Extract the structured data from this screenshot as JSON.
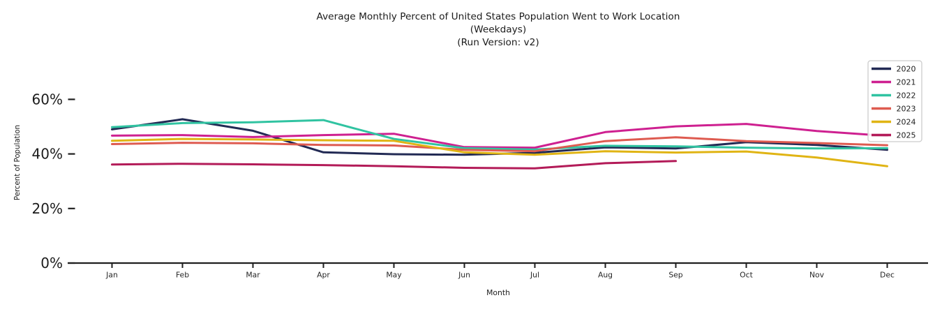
{
  "figure": {
    "background": "#ffffff",
    "axis_color": "#1f1f1f"
  },
  "chart_data": {
    "type": "line",
    "title": "Average Monthly Percent of United States Population Went to Work Location\n(Weekdays)\n(Run Version: v2)",
    "title_lines": [
      "Average Monthly Percent of United States Population Went to Work Location",
      "(Weekdays)",
      "(Run Version: v2)"
    ],
    "xlabel": "Month",
    "ylabel": "Percent of Population",
    "categories": [
      "Jan",
      "Feb",
      "Mar",
      "Apr",
      "May",
      "Jun",
      "Jul",
      "Aug",
      "Sep",
      "Oct",
      "Nov",
      "Dec"
    ],
    "yticks": [
      0,
      20,
      40,
      60
    ],
    "ytick_labels": [
      "0%",
      "20%",
      "40%",
      "60%"
    ],
    "ylim": [
      0,
      74
    ],
    "grid": false,
    "legend_position": "upper right",
    "series": [
      {
        "name": "2020",
        "color": "#222a54",
        "values": [
          49.0,
          52.7,
          48.5,
          40.6,
          39.9,
          39.7,
          40.4,
          42.4,
          42.0,
          44.3,
          43.3,
          41.5
        ]
      },
      {
        "name": "2021",
        "color": "#ce2090",
        "values": [
          46.7,
          46.9,
          46.2,
          46.9,
          47.4,
          42.5,
          42.3,
          48.0,
          50.1,
          51.0,
          48.4,
          46.6
        ]
      },
      {
        "name": "2022",
        "color": "#30c3a1",
        "values": [
          49.8,
          51.3,
          51.6,
          52.4,
          45.5,
          42.1,
          41.6,
          43.0,
          42.8,
          42.3,
          42.0,
          42.1
        ]
      },
      {
        "name": "2023",
        "color": "#de5b50",
        "values": [
          43.6,
          44.1,
          43.9,
          43.3,
          43.1,
          41.5,
          41.0,
          44.7,
          46.1,
          44.7,
          44.0,
          43.2
        ]
      },
      {
        "name": "2024",
        "color": "#e0b414",
        "values": [
          44.8,
          45.5,
          45.3,
          45.0,
          44.8,
          40.6,
          39.7,
          41.0,
          40.5,
          40.9,
          38.7,
          35.5
        ]
      },
      {
        "name": "2025",
        "color": "#b31b58",
        "values": [
          36.1,
          36.4,
          36.2,
          35.9,
          35.5,
          34.9,
          34.7,
          36.6,
          37.4,
          null,
          null,
          null
        ]
      }
    ]
  }
}
